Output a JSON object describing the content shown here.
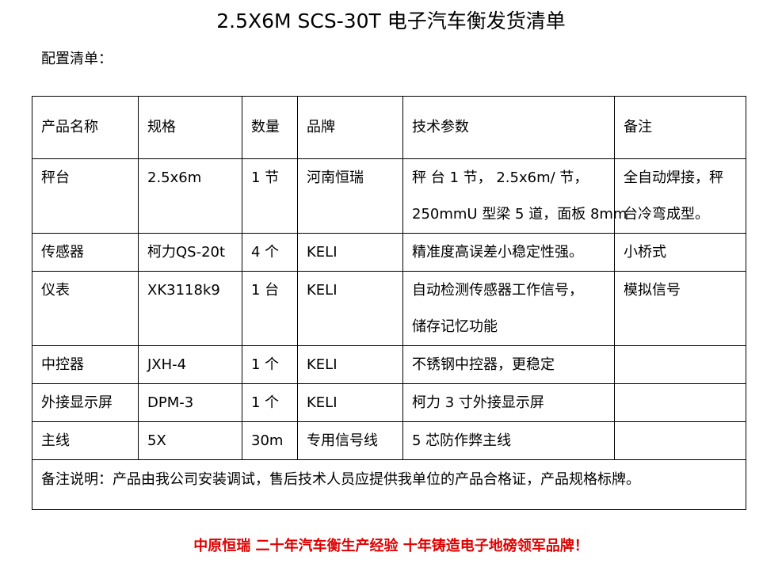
{
  "title": "2.5X6M SCS-30T 电子汽车衡发货清单",
  "subtitle": "配置清单：",
  "table": {
    "headers": [
      "产品名称",
      "规格",
      "数量",
      "品牌",
      "技术参数",
      "备注"
    ],
    "rows": [
      [
        "秤台",
        "2.5x6m",
        "1 节",
        "河南恒瑞",
        "秤 台 1 节， 2.5x6m/ 节，\n250mmU 型梁 5 道，面板 8mm",
        "全自动焊接，秤\n台冷弯成型。"
      ],
      [
        "传感器",
        "柯力QS-20t",
        "4 个",
        "KELI",
        "精准度高误差小稳定性强。",
        "小桥式"
      ],
      [
        "仪表",
        "XK3118k9",
        "1 台",
        "KELI",
        "自动检测传感器工作信号，\n储存记忆功能",
        "模拟信号"
      ],
      [
        "中控器",
        "JXH-4",
        "1 个",
        "KELI",
        "不锈钢中控器，更稳定",
        ""
      ],
      [
        "外接显示屏",
        "DPM-3",
        "1 个",
        "KELI",
        "柯力 3 寸外接显示屏",
        ""
      ],
      [
        "主线",
        "5X",
        "30m",
        "专用信号线",
        "5 芯防作弊主线",
        ""
      ]
    ],
    "footnote": "备注说明：产品由我公司安装调试，售后技术人员应提供我单位的产品合格证，产品规格标牌。"
  },
  "slogan": "中原恒瑞  二十年汽车衡生产经验  十年铸造电子地磅领军品牌！",
  "colors": {
    "slogan": "#e00000",
    "border": "#000000"
  }
}
